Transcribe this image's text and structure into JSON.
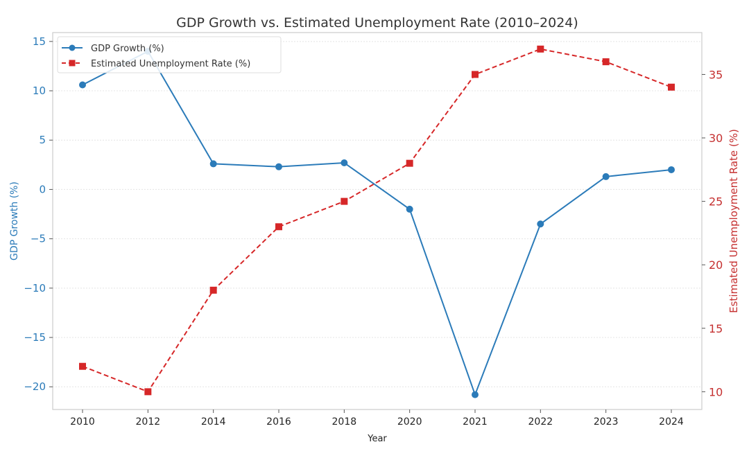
{
  "chart_data": {
    "type": "line",
    "title": "GDP Growth vs. Estimated Unemployment Rate (2010–2024)",
    "xlabel": "Year",
    "ylabel_left": "GDP Growth (%)",
    "ylabel_right": "Estimated Unemployment Rate (%)",
    "categories": [
      "2010",
      "2012",
      "2014",
      "2016",
      "2018",
      "2020",
      "2021",
      "2022",
      "2023",
      "2024"
    ],
    "ylim_left": [
      -22.3,
      15.9
    ],
    "ylim_right": [
      8.6,
      38.3
    ],
    "yticks_left": [
      15,
      10,
      5,
      0,
      -5,
      -10,
      -15,
      -20
    ],
    "ytick_labels_left": [
      "15",
      "10",
      "5",
      "0",
      "−5",
      "−10",
      "−15",
      "−20"
    ],
    "yticks_right": [
      35,
      30,
      25,
      20,
      15,
      10
    ],
    "ytick_labels_right": [
      "35",
      "30",
      "25",
      "20",
      "15",
      "10"
    ],
    "grid": true,
    "legend_position": "top-left",
    "series": [
      {
        "name": "GDP Growth (%)",
        "axis": "left",
        "color": "#2b7bb9",
        "marker": "circle",
        "linestyle": "solid",
        "values": [
          10.6,
          14.0,
          2.6,
          2.3,
          2.7,
          -2.0,
          -20.8,
          -3.5,
          1.3,
          2.0
        ]
      },
      {
        "name": "Estimated Unemployment Rate (%)",
        "axis": "right",
        "color": "#d62728",
        "marker": "square",
        "linestyle": "dashed",
        "values": [
          12,
          10,
          18,
          23,
          25,
          28,
          35,
          37,
          36,
          34
        ]
      }
    ]
  }
}
